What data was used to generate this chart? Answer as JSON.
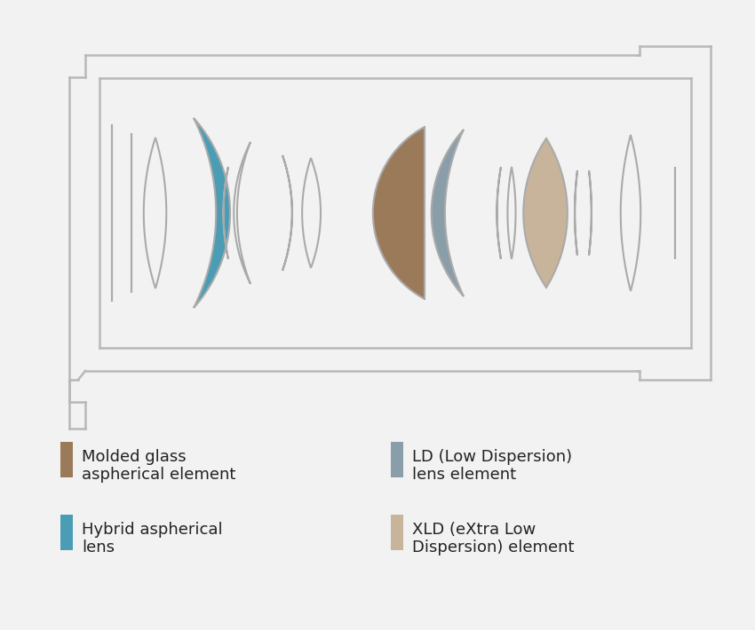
{
  "bg": "#f2f2f2",
  "ec": "#aaaaaa",
  "lw": 1.5,
  "colors": {
    "teal": "#4a9db5",
    "brown": "#9b7a5a",
    "gray": "#8a9eaa",
    "tan": "#c8b49a",
    "white": "none"
  },
  "legend": [
    {
      "color": "#9b7a5a",
      "line1": "Molded glass",
      "line2": "aspherical element"
    },
    {
      "color": "#4a9db5",
      "line1": "Hybrid aspherical",
      "line2": "lens"
    },
    {
      "color": "#8a9eaa",
      "line1": "LD (Low Dispersion)",
      "line2": "lens element"
    },
    {
      "color": "#c8b49a",
      "line1": "XLD (eXtra Low",
      "line2": "Dispersion) element"
    }
  ]
}
